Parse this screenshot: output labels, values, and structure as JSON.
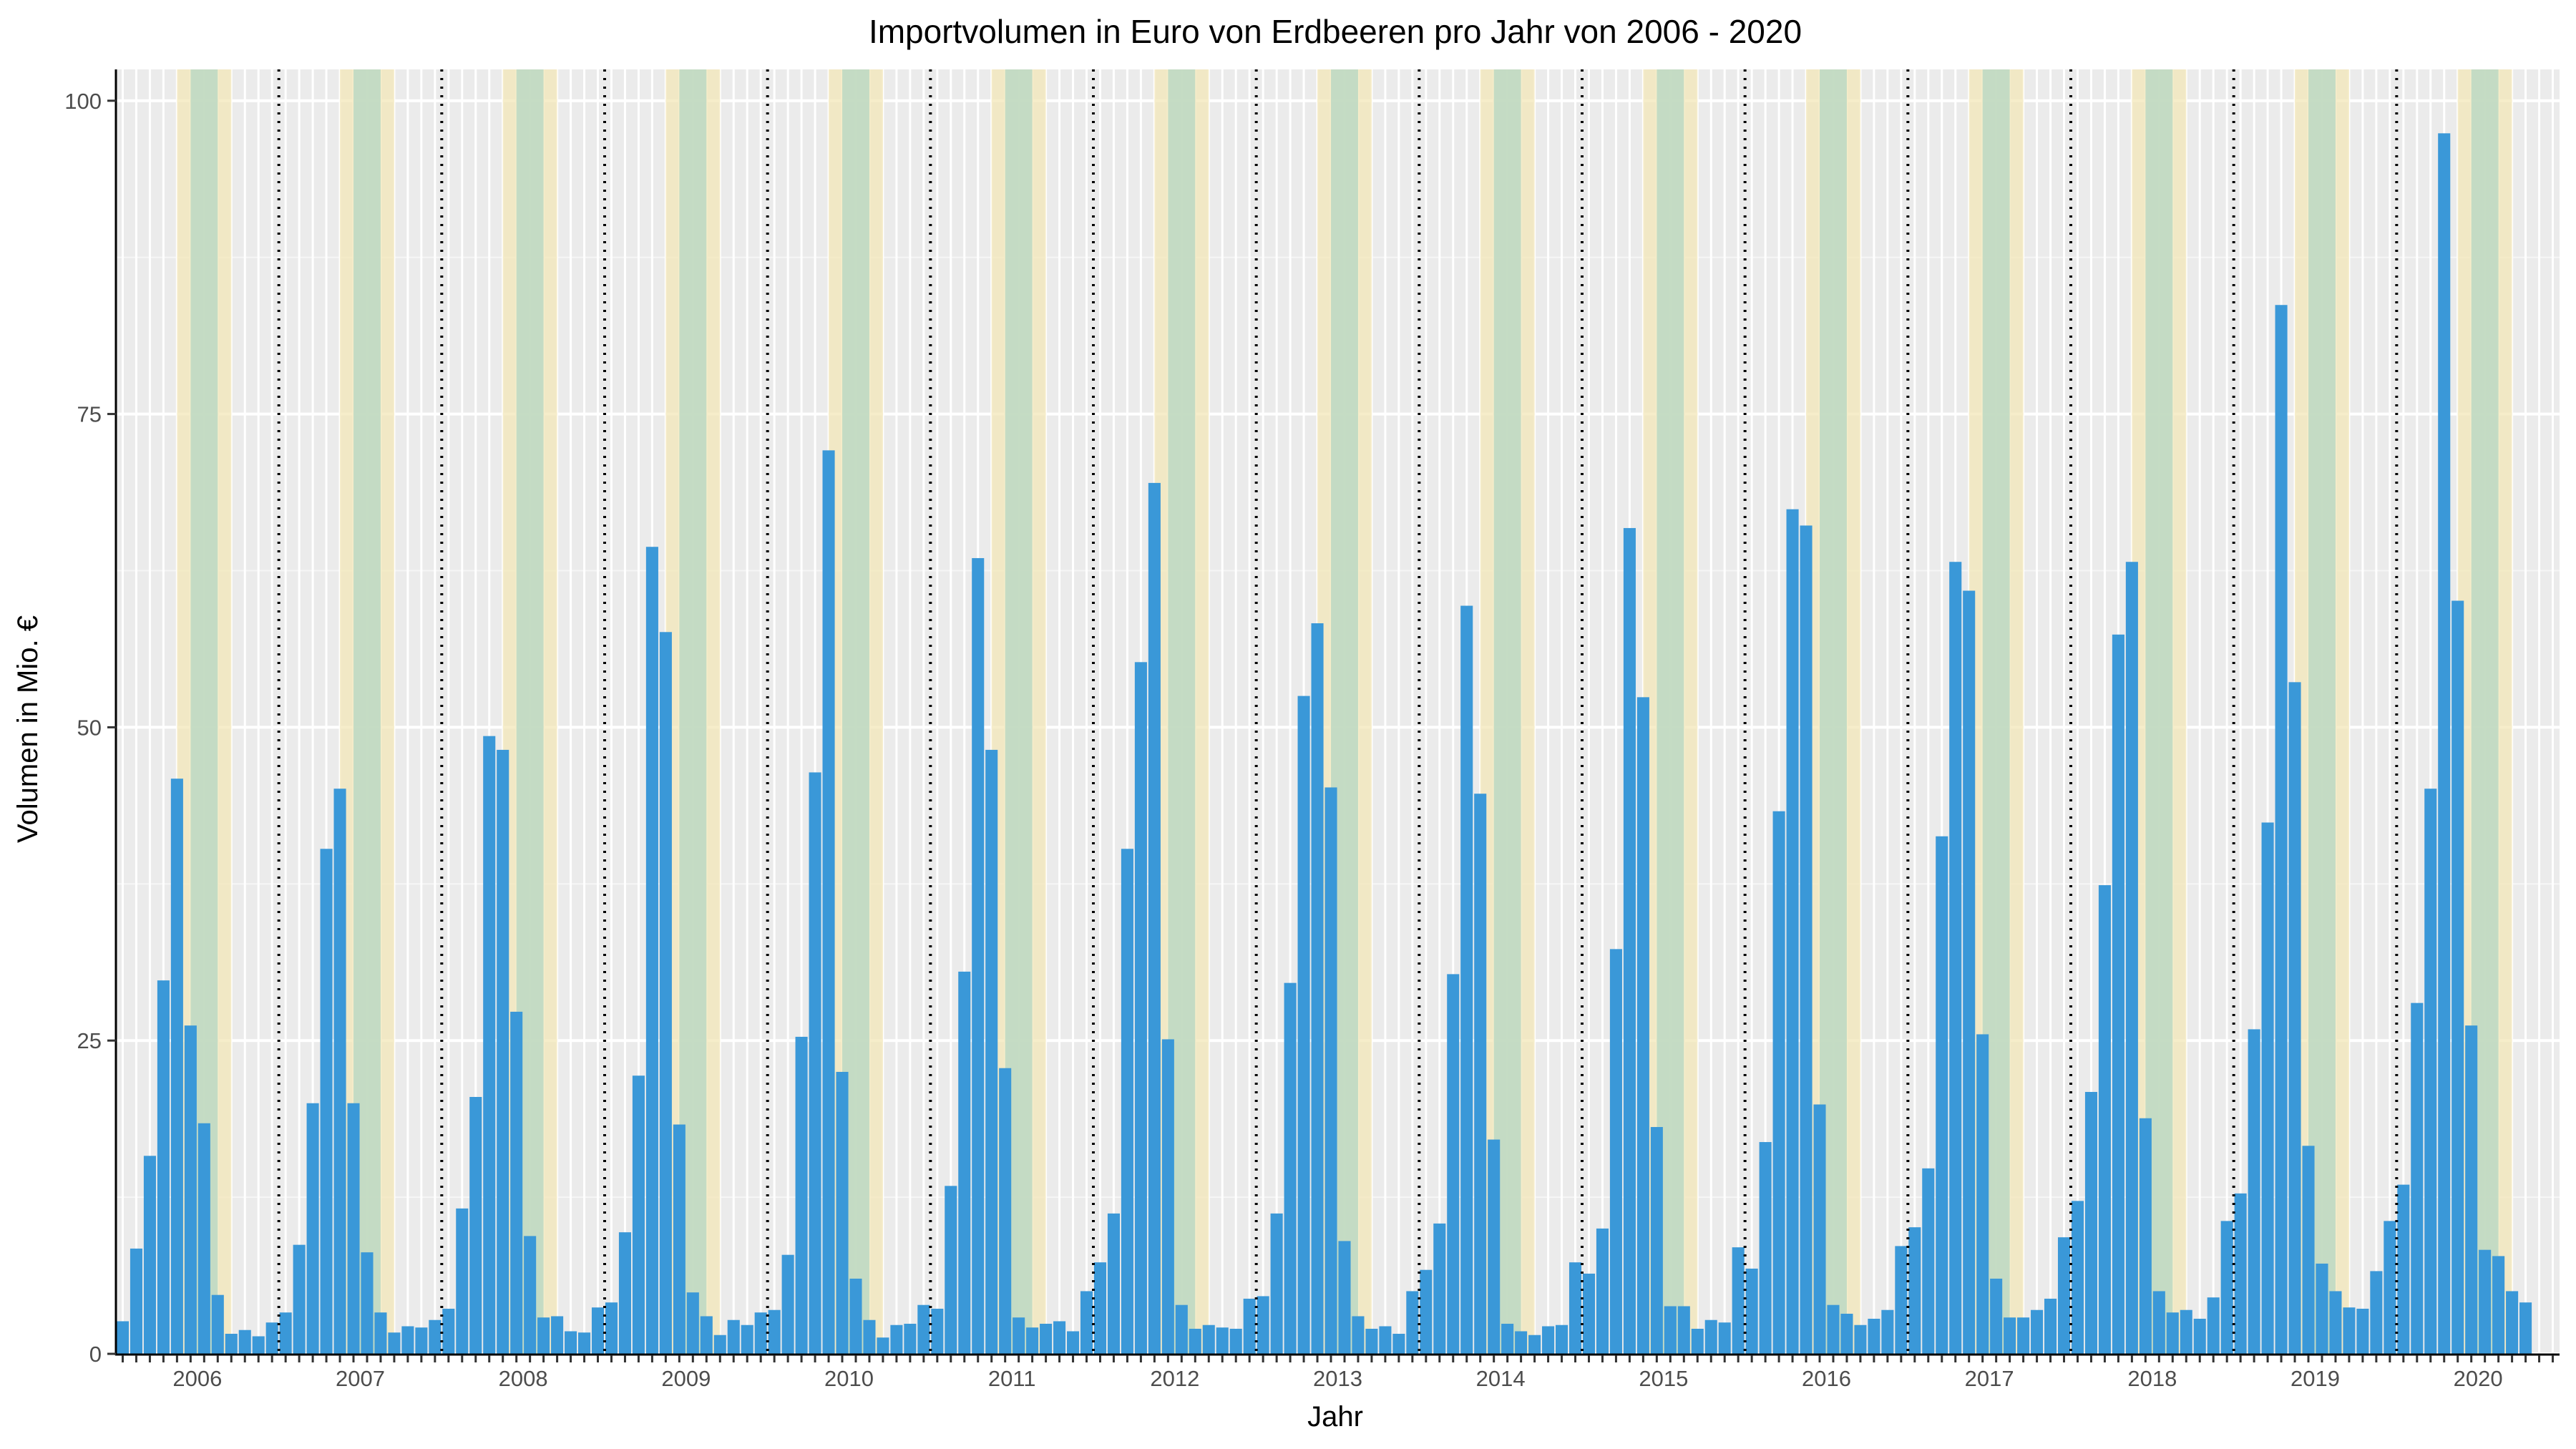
{
  "chart_data": {
    "type": "bar",
    "title": "Importvolumen in Euro von Erdbeeren pro Jahr von 2006 - 2020",
    "xlabel": "Jahr",
    "ylabel": "Volumen in Mio. €",
    "ylim": [
      0,
      102.5
    ],
    "yticks": [
      0,
      25,
      50,
      75,
      100
    ],
    "years": [
      "2006",
      "2007",
      "2008",
      "2009",
      "2010",
      "2011",
      "2012",
      "2013",
      "2014",
      "2015",
      "2016",
      "2017",
      "2018",
      "2019",
      "2020"
    ],
    "months_per_year": 12,
    "grid": true,
    "year_separator": "dotted",
    "season_bands": [
      {
        "name": "",
        "color": "#f3e7b8",
        "start_month": 4.5,
        "end_month": 8.5
      },
      {
        "name": "",
        "color": "#bcd8c3",
        "start_month": 5.5,
        "end_month": 7.5
      }
    ],
    "series": [
      {
        "color": "#3a98d8",
        "values": [
          2.6,
          8.4,
          15.8,
          29.8,
          45.9,
          26.2,
          18.4,
          4.7,
          1.6,
          1.9,
          1.4,
          2.5,
          3.3,
          8.7,
          20.0,
          40.3,
          45.1,
          20.0,
          8.1,
          3.3,
          1.7,
          2.2,
          2.1,
          2.7,
          3.6,
          11.6,
          20.5,
          49.3,
          48.2,
          27.3,
          9.4,
          2.9,
          3.0,
          1.8,
          1.7,
          3.7,
          4.1,
          9.7,
          22.2,
          64.4,
          57.6,
          18.3,
          4.9,
          3.0,
          1.5,
          2.7,
          2.3,
          3.3,
          3.5,
          7.9,
          25.3,
          46.4,
          72.1,
          22.5,
          6.0,
          2.7,
          1.3,
          2.3,
          2.4,
          3.9,
          3.6,
          13.4,
          30.5,
          63.5,
          48.2,
          22.8,
          2.9,
          2.1,
          2.4,
          2.6,
          1.8,
          5.0,
          7.3,
          11.2,
          40.3,
          55.2,
          69.5,
          25.1,
          3.9,
          2.0,
          2.3,
          2.1,
          2.0,
          4.4,
          4.6,
          11.2,
          29.6,
          52.5,
          58.3,
          45.2,
          9.0,
          3.0,
          2.0,
          2.2,
          1.6,
          5.0,
          6.7,
          10.4,
          30.3,
          59.7,
          44.7,
          17.1,
          2.4,
          1.8,
          1.5,
          2.2,
          2.3,
          7.3,
          6.4,
          10.0,
          32.3,
          65.9,
          52.4,
          18.1,
          3.8,
          3.8,
          2.0,
          2.7,
          2.5,
          8.5,
          6.8,
          16.9,
          43.3,
          67.4,
          66.1,
          19.9,
          3.9,
          3.2,
          2.3,
          2.8,
          3.5,
          8.6,
          10.1,
          14.8,
          41.3,
          63.2,
          60.9,
          25.5,
          6.0,
          2.9,
          2.9,
          3.5,
          4.4,
          9.3,
          12.2,
          20.9,
          37.4,
          57.4,
          63.2,
          18.8,
          5.0,
          3.3,
          3.5,
          2.8,
          4.5,
          10.6,
          12.8,
          25.9,
          42.4,
          83.7,
          53.6,
          16.6,
          7.2,
          5.0,
          3.7,
          3.6,
          6.6,
          10.6,
          13.5,
          28.0,
          45.1,
          97.4,
          60.1,
          26.2,
          8.3,
          7.8,
          5.0,
          4.1
        ]
      }
    ]
  }
}
